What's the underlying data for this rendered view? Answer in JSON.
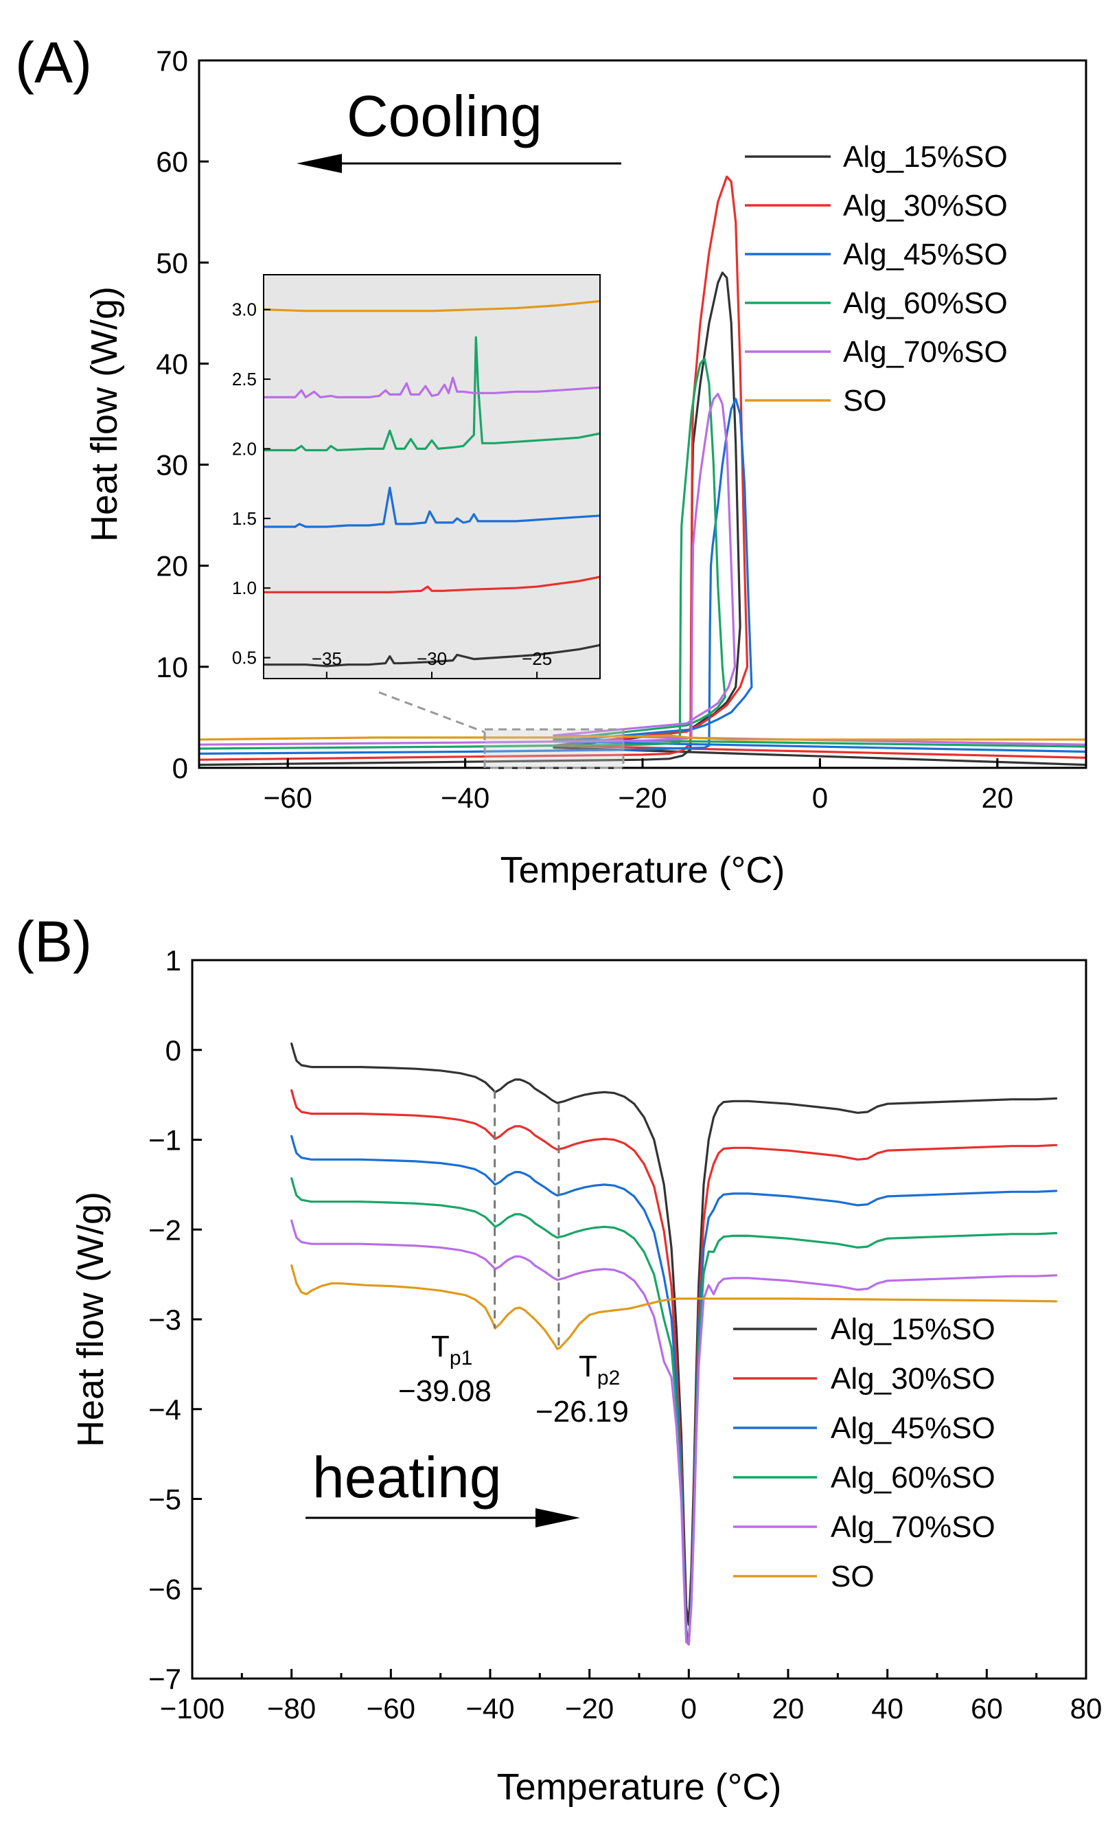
{
  "panels": [
    {
      "id": "A",
      "panel_label": "(A)",
      "arrow_text": "Cooling",
      "chart_data": {
        "type": "line",
        "title": "",
        "xlabel": "Temperature (°C)",
        "ylabel": "Heat flow (W/g)",
        "xlim": [
          -70,
          30
        ],
        "ylim": [
          0,
          70
        ],
        "xticks": [
          -60,
          -40,
          -20,
          0,
          20
        ],
        "yticks": [
          0,
          10,
          20,
          30,
          40,
          50,
          60,
          70
        ],
        "legend_position": "top-right",
        "series": [
          {
            "name": "Alg_15%SO",
            "color": "#333333",
            "x": [
              -70,
              -40,
              -20,
              -17,
              -15.5,
              -14.6,
              -14.5,
              -14.4,
              -14.3,
              -13.5,
              -12.5,
              -11.5,
              -11,
              -10.5,
              -10,
              -9.5,
              -9,
              -9.5,
              -10.5,
              -12,
              -13,
              -14,
              -15,
              -30,
              30
            ],
            "y": [
              0.3,
              0.6,
              0.8,
              0.9,
              1.2,
              1.8,
              16,
              28,
              32,
              38,
              44,
              48,
              49,
              48.5,
              44,
              32,
              14,
              8,
              6.5,
              5.3,
              4.8,
              4.2,
              3.6,
              2,
              0.3
            ]
          },
          {
            "name": "Alg_30%SO",
            "color": "#e8302d",
            "x": [
              -70,
              -40,
              -20,
              -17,
              -15.5,
              -14.6,
              -14.5,
              -14.4,
              -14.3,
              -13.5,
              -12.5,
              -11.5,
              -10.5,
              -10,
              -9.5,
              -9,
              -8.5,
              -8.2,
              -9,
              -10.5,
              -12,
              -13.5,
              -15,
              -30,
              30
            ],
            "y": [
              0.8,
              1.1,
              1.3,
              1.4,
              1.7,
              2.4,
              18,
              32,
              36,
              44,
              51,
              56,
              58.5,
              58,
              54,
              40,
              20,
              10,
              8,
              6.2,
              5.2,
              4.3,
              3.6,
              2.2,
              1.0
            ]
          },
          {
            "name": "Alg_45%SO",
            "color": "#1a6fd6",
            "x": [
              -70,
              -40,
              -20,
              -17,
              -13,
              -12.5,
              -12.4,
              -12.3,
              -12.1,
              -11.5,
              -11,
              -10.5,
              -10,
              -9.5,
              -9,
              -8.5,
              -8,
              -7.7,
              -8.5,
              -10,
              -11.5,
              -13,
              -14.5,
              -30,
              30
            ],
            "y": [
              1.4,
              1.6,
              1.8,
              1.9,
              2.0,
              2.2,
              14,
              20,
              22,
              26,
              30,
              33,
              35.5,
              36.5,
              35,
              28,
              15,
              8,
              7,
              5.5,
              4.8,
              4.2,
              3.8,
              2.6,
              1.6
            ]
          },
          {
            "name": "Alg_60%SO",
            "color": "#1aa567",
            "x": [
              -70,
              -40,
              -20,
              -17,
              -16,
              -15.8,
              -15.7,
              -15.6,
              -15,
              -14.5,
              -14,
              -13.5,
              -13,
              -12.5,
              -12,
              -11.5,
              -11,
              -10.7,
              -11.5,
              -12.5,
              -13.5,
              -15,
              -30,
              30
            ],
            "y": [
              1.9,
              2.1,
              2.3,
              2.4,
              2.5,
              2.6,
              18,
              24,
              30,
              35,
              38,
              40,
              40.5,
              38,
              30,
              18,
              10,
              7,
              6,
              5.3,
              4.8,
              4.2,
              2.8,
              2.1
            ]
          },
          {
            "name": "Alg_70%SO",
            "color": "#b86ee6",
            "x": [
              -70,
              -40,
              -20,
              -17,
              -15,
              -14.5,
              -14.4,
              -14.3,
              -14,
              -13.5,
              -13,
              -12.5,
              -12,
              -11.5,
              -11,
              -10.5,
              -10,
              -9.6,
              -10.3,
              -11.5,
              -12.5,
              -14,
              -15,
              -30,
              30
            ],
            "y": [
              2.3,
              2.5,
              2.7,
              2.8,
              2.9,
              3.0,
              16,
              22,
              25,
              29,
              32,
              35,
              36.5,
              37,
              36,
              32,
              20,
              10,
              8,
              6.4,
              5.8,
              5.0,
              4.4,
              3.2,
              2.3
            ]
          },
          {
            "name": "SO",
            "color": "#e09a1a",
            "x": [
              -70,
              -50,
              -40,
              -30,
              -25,
              -20,
              -17,
              -15,
              -10,
              -5,
              0,
              30
            ],
            "y": [
              2.8,
              3.0,
              3.0,
              3.0,
              3.1,
              3.1,
              3.2,
              3.0,
              2.8,
              2.8,
              2.8,
              2.8
            ]
          }
        ]
      },
      "inset_chart_data": {
        "type": "line",
        "xlim": [
          -38,
          -22
        ],
        "ylim": [
          0.35,
          3.25
        ],
        "xticks": [
          -35,
          -30,
          -25
        ],
        "yticks": [
          0.5,
          1.0,
          1.5,
          2.0,
          2.5,
          3.0
        ],
        "ytick_labels": [
          "0.5",
          "1.0",
          "1.5",
          "2.0",
          "2.5",
          "3.0"
        ],
        "series": [
          {
            "name": "Alg_15%SO",
            "color": "#333333",
            "x": [
              -38,
              -37,
              -36,
              -35,
              -34,
              -33.5,
              -33,
              -32.2,
              -32,
              -31.8,
              -31.5,
              -30,
              -29,
              -28.8,
              -28,
              -27,
              -26,
              -25,
              -24,
              -23,
              -22
            ],
            "y": [
              0.45,
              0.45,
              0.45,
              0.44,
              0.45,
              0.45,
              0.45,
              0.46,
              0.51,
              0.46,
              0.46,
              0.47,
              0.48,
              0.52,
              0.49,
              0.5,
              0.51,
              0.52,
              0.54,
              0.56,
              0.59
            ]
          },
          {
            "name": "Alg_30%SO",
            "color": "#e8302d",
            "x": [
              -38,
              -36,
              -34,
              -32,
              -30.5,
              -30.2,
              -30,
              -29.5,
              -28,
              -26,
              -25,
              -24,
              -23,
              -22
            ],
            "y": [
              0.97,
              0.97,
              0.97,
              0.97,
              0.98,
              1.01,
              0.98,
              0.98,
              0.99,
              1.0,
              1.01,
              1.03,
              1.05,
              1.08
            ]
          },
          {
            "name": "Alg_45%SO",
            "color": "#1a6fd6",
            "x": [
              -38,
              -36.5,
              -36.3,
              -36,
              -35,
              -34,
              -33,
              -32.3,
              -32.0,
              -31.7,
              -31.5,
              -31,
              -30.3,
              -30.1,
              -29.8,
              -29,
              -28.8,
              -28.5,
              -28.2,
              -28,
              -27.8,
              -27.5,
              -27,
              -26,
              -25,
              -24,
              -23,
              -22
            ],
            "y": [
              1.44,
              1.44,
              1.46,
              1.44,
              1.44,
              1.45,
              1.45,
              1.46,
              1.72,
              1.46,
              1.46,
              1.46,
              1.47,
              1.55,
              1.47,
              1.47,
              1.5,
              1.47,
              1.48,
              1.53,
              1.48,
              1.48,
              1.48,
              1.48,
              1.49,
              1.5,
              1.51,
              1.52
            ]
          },
          {
            "name": "Alg_60%SO",
            "color": "#1aa567",
            "x": [
              -38,
              -36.5,
              -36.2,
              -36,
              -35,
              -34.8,
              -34.5,
              -33,
              -32.3,
              -32.0,
              -31.7,
              -31.3,
              -31.0,
              -30.7,
              -30.3,
              -30.0,
              -29.7,
              -29,
              -28.5,
              -28.0,
              -27.9,
              -27.8,
              -27.6,
              -27,
              -26,
              -25,
              -24,
              -23,
              -22
            ],
            "y": [
              1.99,
              1.99,
              2.02,
              1.99,
              1.99,
              2.02,
              1.99,
              2.0,
              2.0,
              2.13,
              2.0,
              2.0,
              2.07,
              2.0,
              2.0,
              2.06,
              2.0,
              2.01,
              2.02,
              2.1,
              2.8,
              2.45,
              2.04,
              2.04,
              2.05,
              2.06,
              2.07,
              2.08,
              2.11
            ]
          },
          {
            "name": "Alg_70%SO",
            "color": "#b86ee6",
            "x": [
              -38,
              -36.5,
              -36.2,
              -36,
              -35.6,
              -35.3,
              -34.8,
              -34.5,
              -33,
              -32.5,
              -32.2,
              -32.0,
              -31.5,
              -31.2,
              -31.0,
              -30.6,
              -30.3,
              -30.0,
              -29.7,
              -29.4,
              -29.2,
              -29.0,
              -28.8,
              -28.5,
              -28,
              -27,
              -26,
              -25,
              -24,
              -23,
              -22
            ],
            "y": [
              2.37,
              2.37,
              2.42,
              2.37,
              2.41,
              2.37,
              2.38,
              2.37,
              2.37,
              2.38,
              2.42,
              2.39,
              2.39,
              2.47,
              2.39,
              2.39,
              2.45,
              2.38,
              2.39,
              2.46,
              2.4,
              2.51,
              2.41,
              2.41,
              2.4,
              2.4,
              2.41,
              2.41,
              2.42,
              2.43,
              2.44
            ]
          },
          {
            "name": "SO",
            "color": "#e09a1a",
            "x": [
              -38,
              -36,
              -34,
              -32,
              -30,
              -28,
              -26,
              -24,
              -22
            ],
            "y": [
              3.0,
              2.99,
              2.99,
              2.99,
              2.99,
              3.0,
              3.01,
              3.03,
              3.06
            ]
          }
        ]
      }
    },
    {
      "id": "B",
      "panel_label": "(B)",
      "arrow_text": "heating",
      "tp1_main": "T",
      "tp1_sub": "p1",
      "tp1_value": "−39.08",
      "tp2_main": "T",
      "tp2_sub": "p2",
      "tp2_value": "−26.19",
      "chart_data": {
        "type": "line",
        "title": "",
        "xlabel": "Temperature (°C)",
        "ylabel": "Heat flow (W/g)",
        "xlim": [
          -100,
          80
        ],
        "ylim": [
          -7,
          1
        ],
        "xticks": [
          -100,
          -80,
          -60,
          -40,
          -20,
          0,
          20,
          40,
          60,
          80
        ],
        "xtick_labels": [
          "−100",
          "−80",
          "−60",
          "−40",
          "−20",
          "0",
          "20",
          "40",
          "60",
          "80"
        ],
        "yticks": [
          -7,
          -6,
          -5,
          -4,
          -3,
          -2,
          -1,
          0,
          1
        ],
        "ytick_labels": [
          "−7",
          "−6",
          "−5",
          "−4",
          "−3",
          "−2",
          "−1",
          "0",
          "1"
        ],
        "legend_position": "bottom-right",
        "annotations": [
          {
            "label": "Tp1",
            "x": -39.08,
            "value": "−39.08"
          },
          {
            "label": "Tp2",
            "x": -26.19,
            "value": "−26.19"
          }
        ],
        "series": [
          {
            "name": "Alg_15%SO",
            "color": "#333333",
            "offset": 0.0
          },
          {
            "name": "Alg_30%SO",
            "color": "#e8302d",
            "offset": -0.52
          },
          {
            "name": "Alg_45%SO",
            "color": "#1a6fd6",
            "offset": -1.03
          },
          {
            "name": "Alg_60%SO",
            "color": "#1aa567",
            "offset": -1.5
          },
          {
            "name": "Alg_70%SO",
            "color": "#b86ee6",
            "offset": -1.97
          },
          {
            "name": "SO",
            "color": "#e09a1a"
          }
        ],
        "base_profile": {
          "x": [
            -80,
            -79.5,
            -79,
            -78,
            -76,
            -72,
            -66,
            -60,
            -55,
            -50,
            -46,
            -43,
            -41,
            -39.5,
            -39,
            -38,
            -36.5,
            -35,
            -34,
            -33,
            -32,
            -31,
            -29,
            -27.5,
            -26.5,
            -25,
            -23,
            -21,
            -19,
            -17,
            -15,
            -13,
            -11,
            -9,
            -7,
            -5,
            -3.5,
            -2.5,
            -1.5,
            -1,
            -0.5,
            0,
            0.5,
            1,
            1.5,
            2,
            3,
            4,
            5,
            6,
            7,
            9,
            12,
            20,
            30,
            34,
            36,
            38,
            40,
            45,
            50,
            60,
            65,
            70,
            74
          ],
          "y": [
            0.07,
            -0.03,
            -0.12,
            -0.17,
            -0.19,
            -0.19,
            -0.19,
            -0.2,
            -0.21,
            -0.23,
            -0.26,
            -0.3,
            -0.36,
            -0.44,
            -0.47,
            -0.44,
            -0.37,
            -0.33,
            -0.33,
            -0.35,
            -0.38,
            -0.43,
            -0.5,
            -0.56,
            -0.59,
            -0.57,
            -0.53,
            -0.5,
            -0.48,
            -0.47,
            -0.48,
            -0.52,
            -0.6,
            -0.75,
            -1.0,
            -1.5,
            -2.2,
            -3.1,
            -4.3,
            -5.3,
            -6.2,
            -6.4,
            -5.8,
            -4.8,
            -3.6,
            -2.6,
            -1.5,
            -1.0,
            -0.75,
            -0.63,
            -0.58,
            -0.57,
            -0.57,
            -0.6,
            -0.66,
            -0.7,
            -0.69,
            -0.63,
            -0.6,
            -0.59,
            -0.58,
            -0.56,
            -0.55,
            -0.55,
            -0.54
          ]
        },
        "so_profile": {
          "x": [
            -80,
            -79.5,
            -79,
            -78,
            -77,
            -76,
            -74,
            -72,
            -70,
            -65,
            -60,
            -55,
            -50,
            -45,
            -43,
            -41,
            -39.5,
            -39,
            -38,
            -36.5,
            -35,
            -34,
            -33,
            -32,
            -31,
            -29,
            -27,
            -26.5,
            -26,
            -24,
            -22,
            -20,
            -18,
            -15,
            -12,
            -9,
            -6,
            -4,
            -2,
            0,
            2,
            5,
            10,
            20,
            40,
            60,
            74
          ],
          "y": [
            -2.4,
            -2.5,
            -2.6,
            -2.7,
            -2.72,
            -2.68,
            -2.63,
            -2.6,
            -2.6,
            -2.62,
            -2.63,
            -2.65,
            -2.68,
            -2.73,
            -2.78,
            -2.87,
            -3.03,
            -3.1,
            -3.05,
            -2.95,
            -2.88,
            -2.87,
            -2.9,
            -2.95,
            -3.0,
            -3.12,
            -3.28,
            -3.33,
            -3.32,
            -3.2,
            -3.05,
            -2.95,
            -2.92,
            -2.9,
            -2.88,
            -2.84,
            -2.8,
            -2.78,
            -2.77,
            -2.77,
            -2.77,
            -2.77,
            -2.77,
            -2.77,
            -2.78,
            -2.79,
            -2.8
          ]
        }
      }
    }
  ]
}
